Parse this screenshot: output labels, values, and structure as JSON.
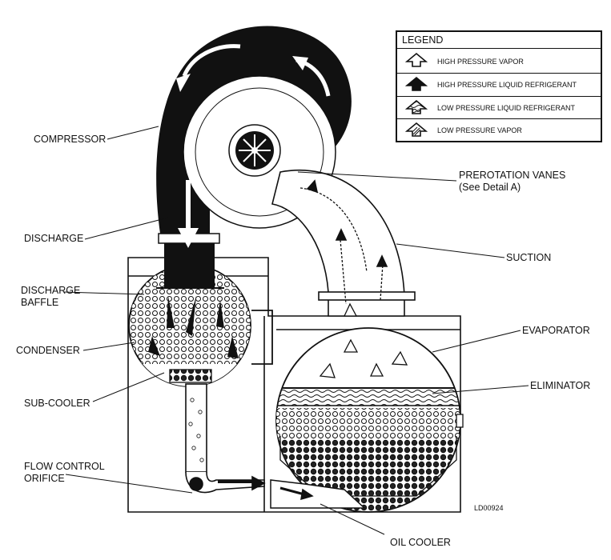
{
  "labels": {
    "compressor": "COMPRESSOR",
    "discharge": "DISCHARGE",
    "discharge_baffle": [
      "DISCHARGE",
      "BAFFLE"
    ],
    "condenser": "CONDENSER",
    "sub_cooler": "SUB-COOLER",
    "flow_control_orifice": [
      "FLOW CONTROL",
      "ORIFICE"
    ],
    "prerotation_vanes": [
      "PREROTATION VANES",
      "(See Detail A)"
    ],
    "suction": "SUCTION",
    "evaporator": "EVAPORATOR",
    "eliminator": "ELIMINATOR",
    "oil_cooler": "OIL COOLER"
  },
  "legend": {
    "title": "LEGEND",
    "items": [
      {
        "label": "HIGH PRESSURE VAPOR",
        "icon": "hollow-arrow-icon"
      },
      {
        "label": "HIGH PRESSURE LIQUID REFRIGERANT",
        "icon": "solid-arrow-icon"
      },
      {
        "label": "LOW PRESSURE LIQUID REFRIGERANT",
        "icon": "wavy-arrow-icon"
      },
      {
        "label": "LOW PRESSURE VAPOR",
        "icon": "hatched-arrow-icon"
      }
    ]
  },
  "drawing_code": "LD00924"
}
